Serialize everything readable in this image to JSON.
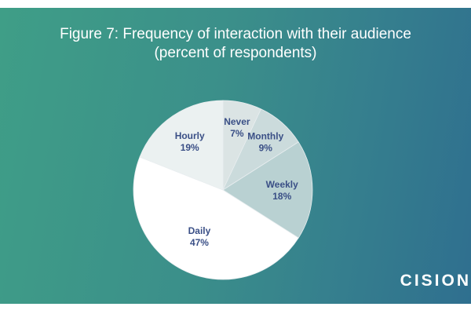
{
  "title": {
    "line1": "Figure 7: Frequency of interaction with their audience",
    "line2": "(percent of respondents)"
  },
  "logo": {
    "text": "CISION"
  },
  "colors": {
    "background_left": "#3f9e87",
    "background_right": "#2f6f8f",
    "label": "#3a4f86",
    "stroke": "#e9eef0"
  },
  "chart_data": {
    "type": "pie",
    "title": "Figure 7: Frequency of interaction with their audience (percent of respondents)",
    "start": "12 o'clock",
    "direction": "clockwise",
    "slices": [
      {
        "label": "Never",
        "value": 7,
        "value_label": "7%",
        "color": "#dbe4e4"
      },
      {
        "label": "Monthly",
        "value": 9,
        "value_label": "9%",
        "color": "#cbdbdc"
      },
      {
        "label": "Weekly",
        "value": 18,
        "value_label": "18%",
        "color": "#b9d1d2"
      },
      {
        "label": "Daily",
        "value": 47,
        "value_label": "47%",
        "color": "#ffffff"
      },
      {
        "label": "Hourly",
        "value": 19,
        "value_label": "19%",
        "color": "#ebf1f1"
      }
    ]
  }
}
